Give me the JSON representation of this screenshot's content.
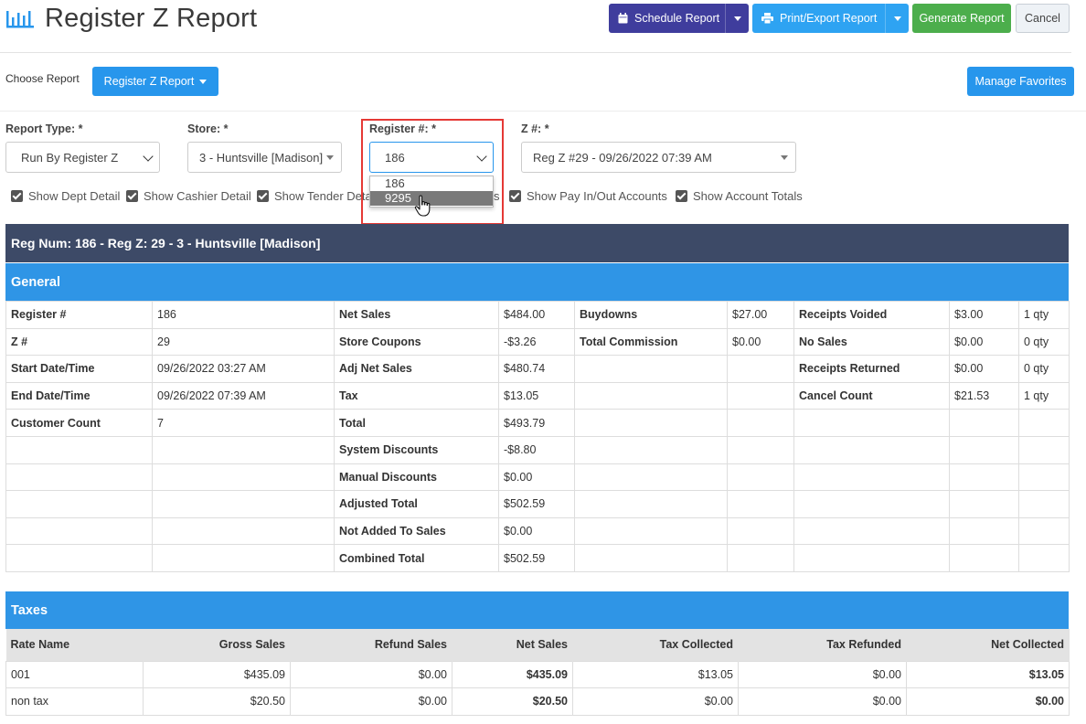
{
  "header": {
    "title": "Register Z Report",
    "schedule_label": "Schedule Report",
    "print_label": "Print/Export Report",
    "generate_label": "Generate Report",
    "cancel_label": "Cancel"
  },
  "toolbar": {
    "choose_label": "Choose Report",
    "choose_value": "Register Z Report",
    "favorites_label": "Manage Favorites"
  },
  "filters": {
    "report_type": {
      "label": "Report Type: *",
      "value": "Run By Register Z"
    },
    "store": {
      "label": "Store: *",
      "value": "3 - Huntsville [Madison]"
    },
    "register": {
      "label": "Register #: *",
      "value": "186",
      "options": [
        "186",
        "9295"
      ],
      "highlighted": "9295"
    },
    "z": {
      "label": "Z #: *",
      "value": "Reg Z #29 - 09/26/2022 07:39 AM"
    }
  },
  "checkboxes": {
    "dept": "Show Dept Detail",
    "cashier": "Show Cashier Detail",
    "tender": "Show Tender Deta",
    "tender_tail": "s",
    "payinout": "Show Pay In/Out Accounts",
    "totals": "Show Account Totals"
  },
  "report": {
    "reg_header": "Reg Num: 186 - Reg Z: 29 - 3 - Huntsville [Madison]",
    "general_title": "General",
    "general_rows": [
      [
        "Register #",
        "186",
        "Net Sales",
        "$484.00",
        "Buydowns",
        "$27.00",
        "Receipts Voided",
        "$3.00",
        "1 qty"
      ],
      [
        "Z #",
        "29",
        "Store Coupons",
        "-$3.26",
        "Total Commission",
        "$0.00",
        "No Sales",
        "$0.00",
        "0 qty"
      ],
      [
        "Start Date/Time",
        "09/26/2022 03:27 AM",
        "Adj Net Sales",
        "$480.74",
        "",
        "",
        "Receipts Returned",
        "$0.00",
        "0 qty"
      ],
      [
        "End Date/Time",
        "09/26/2022 07:39 AM",
        "Tax",
        "$13.05",
        "",
        "",
        "Cancel Count",
        "$21.53",
        "1 qty"
      ],
      [
        "Customer Count",
        "7",
        "Total",
        "$493.79",
        "",
        "",
        "",
        "",
        ""
      ],
      [
        "",
        "",
        "System Discounts",
        "-$8.80",
        "",
        "",
        "",
        "",
        ""
      ],
      [
        "",
        "",
        "Manual Discounts",
        "$0.00",
        "",
        "",
        "",
        "",
        ""
      ],
      [
        "",
        "",
        "Adjusted Total",
        "$502.59",
        "",
        "",
        "",
        "",
        ""
      ],
      [
        "",
        "",
        "Not Added To Sales",
        "$0.00",
        "",
        "",
        "",
        "",
        ""
      ],
      [
        "",
        "",
        "Combined Total",
        "$502.59",
        "",
        "",
        "",
        "",
        ""
      ]
    ],
    "taxes_title": "Taxes",
    "tax_headers": [
      "Rate Name",
      "Gross Sales",
      "Refund Sales",
      "Net Sales",
      "Tax Collected",
      "Tax Refunded",
      "Net Collected"
    ],
    "tax_rows": [
      [
        "001",
        "$435.09",
        "$0.00",
        "$435.09",
        "$13.05",
        "$0.00",
        "$13.05"
      ],
      [
        "non tax",
        "$20.50",
        "$0.00",
        "$20.50",
        "$0.00",
        "$0.00",
        "$0.00"
      ]
    ]
  },
  "colors": {
    "schedule": "#3f3d9d",
    "print": "#2ea3f2",
    "generate": "#4cae4c",
    "section": "#2f95e6",
    "reg_bar": "#3d4a67",
    "highlight_box": "#e53935"
  }
}
